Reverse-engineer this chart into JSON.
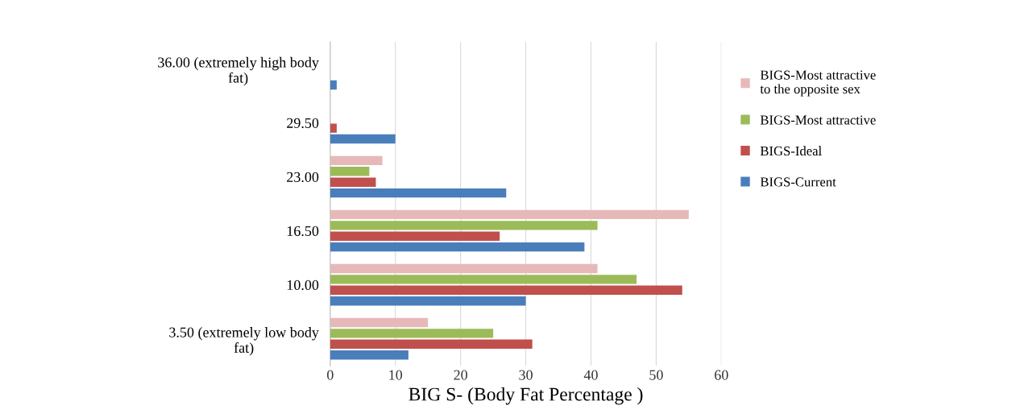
{
  "chart_data": {
    "type": "bar",
    "orientation": "horizontal",
    "xlabel": "BIG S- (Body Fat Percentage )",
    "categories": [
      "36.00 (extremely high body\nfat)",
      "29.50",
      "23.00",
      "16.50",
      "10.00",
      "3.50 (extremely low body\nfat)"
    ],
    "series": [
      {
        "name": "BIGS-Current",
        "color": "#4a7ebb",
        "values": [
          1,
          10,
          27,
          39,
          30,
          12
        ]
      },
      {
        "name": "BIGS-Ideal",
        "color": "#c0504d",
        "values": [
          0,
          1,
          7,
          26,
          54,
          31
        ]
      },
      {
        "name": "BIGS-Most attractive",
        "color": "#9bbb59",
        "values": [
          0,
          0,
          6,
          41,
          47,
          25
        ]
      },
      {
        "name": "BIGS-Most attractive\nto the opposite sex",
        "color": "#e6b9b8",
        "values": [
          0,
          0,
          8,
          55,
          41,
          15
        ]
      }
    ],
    "xlim": [
      0,
      60
    ],
    "xticks": [
      0,
      10,
      20,
      30,
      40,
      50,
      60
    ],
    "grid": "x",
    "legend": "right"
  }
}
